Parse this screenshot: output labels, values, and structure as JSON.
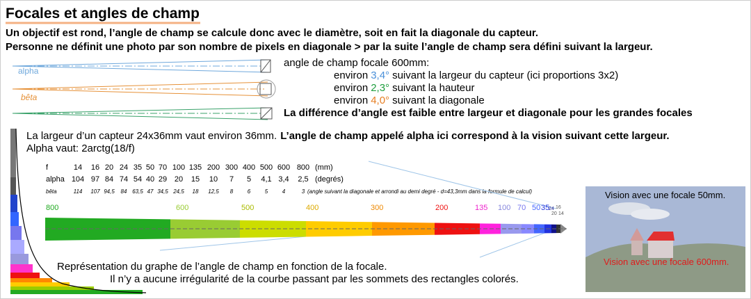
{
  "title": "Focales et angles de champ",
  "intro": [
    "Un objectif est rond, l’angle de champ se calcule donc avec le diamètre, soit en fait la diagonale du capteur.",
    "Personne ne définit une photo par son nombre de pixels en diagonale > par la suite l’angle de champ sera défini suivant la largeur."
  ],
  "lens_diagram": {
    "labels": [
      "alpha",
      "bêta"
    ]
  },
  "angles": {
    "heading": "angle de champ focale 600mm:",
    "lines": [
      {
        "prefix": "environ",
        "value": "3,4°",
        "suffix": "suivant la largeur du capteur (ici proportions 3x2)"
      },
      {
        "prefix": "environ",
        "value": "2,3°",
        "suffix": "suivant la hauteur"
      },
      {
        "prefix": "environ",
        "value": "4,0°",
        "suffix": "suivant la diagonale"
      }
    ],
    "conclusion": "La différence d’angle est faible entre largeur et diagonale pour les grandes focales"
  },
  "explanation": {
    "text": "La largeur d’un capteur 24x36mm vaut environ 36mm.",
    "bold": "L’angle de champ appelé alpha ici correspond à la vision suivant cette largeur.",
    "formula": "Alpha vaut: 2arctg(18/f)"
  },
  "table": {
    "rows": [
      {
        "label": "f",
        "cells": [
          "14",
          "16",
          "20",
          "24",
          "35",
          "50",
          "70",
          "100",
          "135",
          "200",
          "300",
          "400",
          "500",
          "600",
          "800"
        ],
        "note": "(mm)"
      },
      {
        "label": "alpha",
        "cells": [
          "104",
          "97",
          "84",
          "74",
          "54",
          "40",
          "29",
          "20",
          "15",
          "10",
          "7",
          "5",
          "4,1",
          "3,4",
          "2,5"
        ],
        "note": "(degrés)"
      },
      {
        "label": "bêta",
        "cells": [
          "114",
          "107",
          "94,5",
          "84",
          "63,5",
          "47",
          "34,5",
          "24,5",
          "18",
          "12,5",
          "8",
          "6",
          "5",
          "4",
          "3"
        ],
        "note": "(angle suivant la diagonale et arrondi au demi degré - d=43,3mm dans la formule de calcul)"
      }
    ]
  },
  "graph": {
    "labels": [
      "800",
      "600",
      "500",
      "400",
      "300",
      "200",
      "135",
      "100",
      "70",
      "50",
      "35",
      "24",
      "16",
      "20",
      "14"
    ],
    "caption": [
      "Représentation du graphe de l’angle de champ en fonction de la focale.",
      "Il n’y a aucune irrégularité de la courbe passant par les sommets des rectangles colorés."
    ]
  },
  "vision": {
    "labels": [
      "Vision avec une focale 50mm.",
      "Vision avec une focale 600mm."
    ]
  }
}
